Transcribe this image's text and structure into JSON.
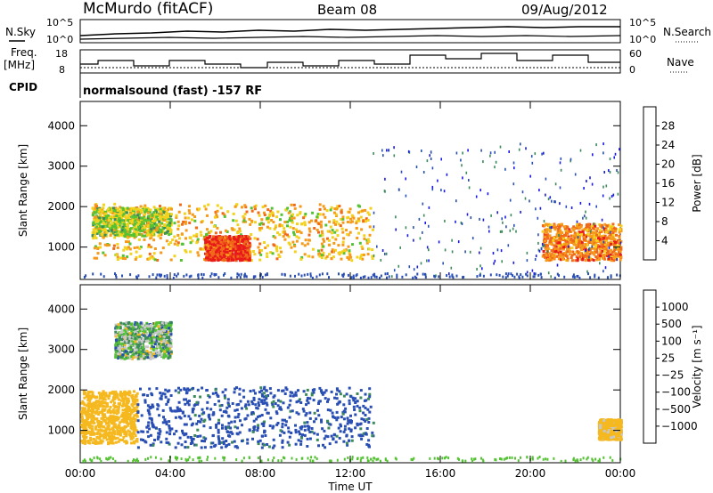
{
  "header": {
    "station": "McMurdo (fitACF)",
    "beam": "Beam 08",
    "date": "09/Aug/2012"
  },
  "top_panels": {
    "nsky_label": "N.Sky",
    "nsky_ticks": [
      "10^5",
      "10^0"
    ],
    "nsearch_label": "N.Search",
    "nsearch_ticks": [
      "10^5",
      "10^0"
    ],
    "freq_label": "Freq.",
    "freq_unit": "[MHz]",
    "freq_ticks": [
      "18",
      "8"
    ],
    "nave_label": "Nave",
    "nave_ticks": [
      "60",
      "0"
    ],
    "cpid_label": "CPID",
    "cpid_value": "normalsound (fast) -157 RF"
  },
  "colors": {
    "power_scale": [
      "#1a1ae6",
      "#2a4fb4",
      "#3c8a5a",
      "#55c234",
      "#f2d21c",
      "#f59a1a",
      "#f06a1a",
      "#e81a1a"
    ],
    "velocity_scale": [
      "#e81a1a",
      "#f04a14",
      "#f5841a",
      "#f5b81e",
      "#c8c8c8",
      "#55c234",
      "#3c8a5a",
      "#2a4fb4",
      "#2a4fb4",
      "#1a1ae6"
    ]
  },
  "chart_data": [
    {
      "type": "heatmap",
      "title": "Power",
      "ylabel": "Slant Range [km]",
      "yticks": [
        "1000",
        "2000",
        "3000",
        "4000"
      ],
      "ylim": [
        200,
        4600
      ],
      "xlim": [
        "00:00",
        "24:00"
      ],
      "colorbar_label": "Power [dB]",
      "colorbar_ticks": [
        "4",
        "8",
        "12",
        "16",
        "20",
        "24",
        "28"
      ],
      "colorbar_range": [
        0,
        32
      ],
      "regions": [
        {
          "x": [
            0.5,
            13.0
          ],
          "y": [
            700,
            2100
          ],
          "level": 20
        },
        {
          "x": [
            5.5,
            7.5
          ],
          "y": [
            700,
            1300
          ],
          "level": 28
        },
        {
          "x": [
            0.5,
            4.0
          ],
          "y": [
            1300,
            2000
          ],
          "level": 16
        },
        {
          "x": [
            20.5,
            24.0
          ],
          "y": [
            700,
            1600
          ],
          "level": 24
        },
        {
          "x": [
            13.0,
            24.0
          ],
          "y": [
            300,
            3600
          ],
          "level": 6
        }
      ]
    },
    {
      "type": "heatmap",
      "title": "Velocity",
      "ylabel": "Slant Range [km]",
      "yticks": [
        "1000",
        "2000",
        "3000",
        "4000"
      ],
      "ylim": [
        200,
        4600
      ],
      "xlabel": "Time UT",
      "xticks": [
        "00:00",
        "04:00",
        "08:00",
        "12:00",
        "16:00",
        "20:00",
        "00:00"
      ],
      "xlim": [
        "00:00",
        "24:00"
      ],
      "colorbar_label": "Velocity [m s⁻¹]",
      "colorbar_ticks": [
        "1000",
        "500",
        "100",
        "25",
        "−25",
        "−100",
        "−500",
        "−1000"
      ],
      "regions": [
        {
          "x": [
            0.0,
            2.5
          ],
          "y": [
            700,
            2000
          ],
          "velocity": -300
        },
        {
          "x": [
            2.5,
            13.0
          ],
          "y": [
            600,
            2100
          ],
          "velocity": 200
        },
        {
          "x": [
            1.5,
            4.0
          ],
          "y": [
            2800,
            3700
          ],
          "velocity": 0
        },
        {
          "x": [
            23.0,
            24.0
          ],
          "y": [
            800,
            1300
          ],
          "velocity": -200
        }
      ]
    }
  ],
  "xaxis": {
    "ticks": [
      "00:00",
      "04:00",
      "08:00",
      "12:00",
      "16:00",
      "20:00",
      "00:00"
    ],
    "label": "Time UT"
  }
}
